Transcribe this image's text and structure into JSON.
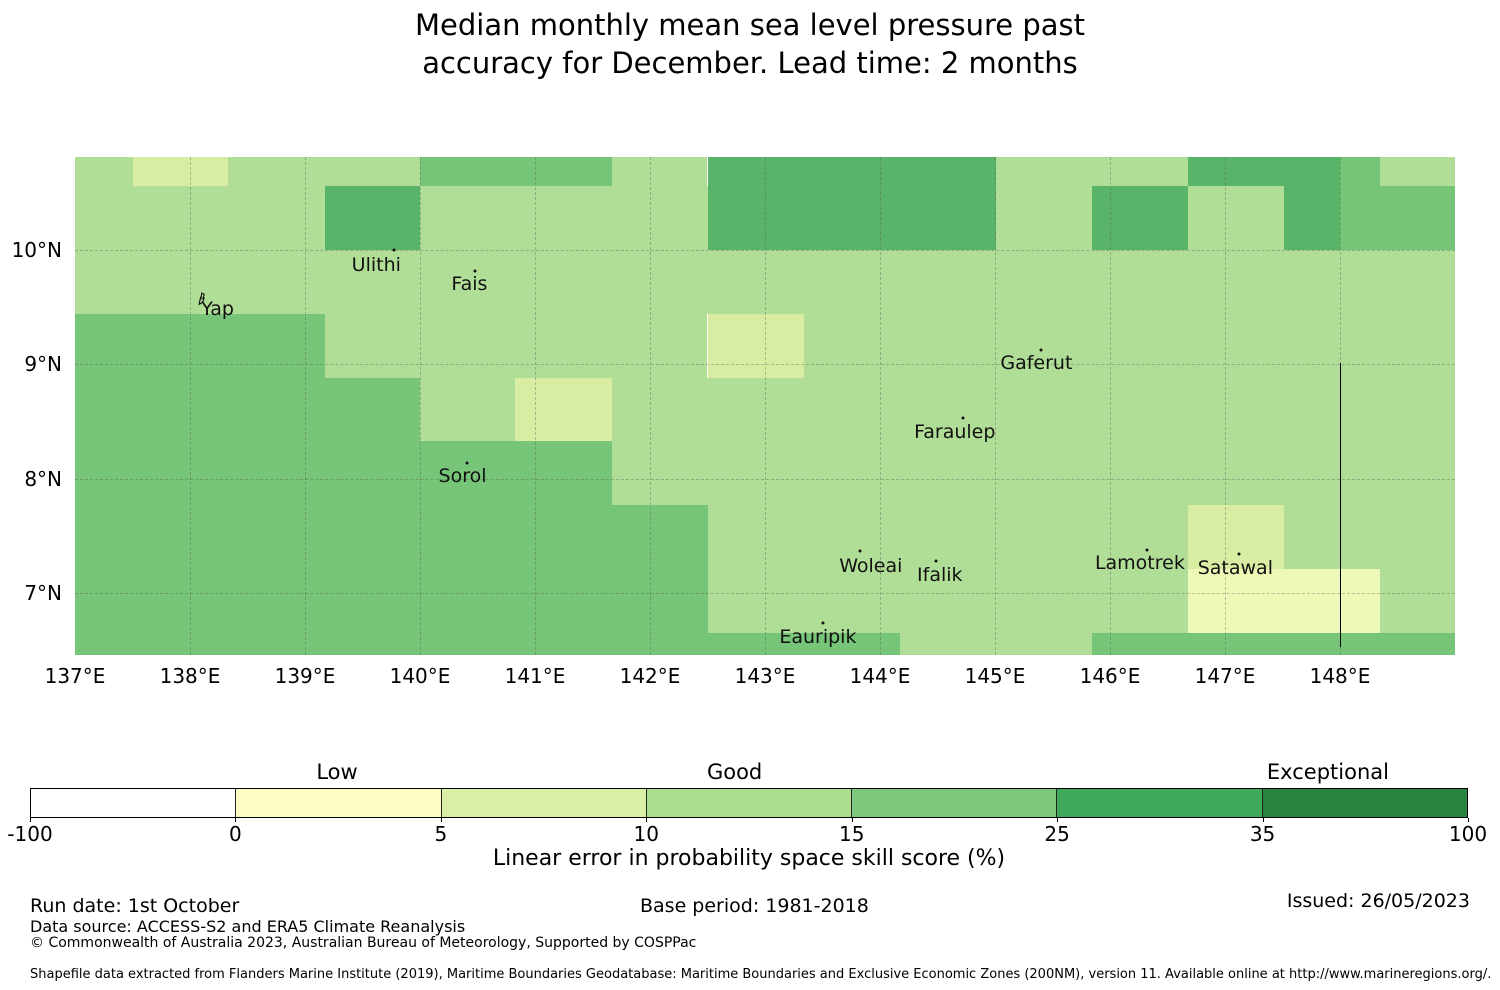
{
  "title": {
    "line1": "Median monthly mean sea level pressure past",
    "line2": "accuracy for December. Lead time: 2 months"
  },
  "chart_data": {
    "type": "heatmap",
    "title": "Median monthly mean sea level pressure past accuracy for December. Lead time: 2 months",
    "map_extent": {
      "lon_min": 137.0,
      "lon_max": 149.0,
      "lat_min": 6.459,
      "lat_max": 10.81
    },
    "x_axis": {
      "ticks": [
        {
          "label": "137°E",
          "lon": 137
        },
        {
          "label": "138°E",
          "lon": 138
        },
        {
          "label": "139°E",
          "lon": 139
        },
        {
          "label": "140°E",
          "lon": 140
        },
        {
          "label": "141°E",
          "lon": 141
        },
        {
          "label": "142°E",
          "lon": 142
        },
        {
          "label": "143°E",
          "lon": 143
        },
        {
          "label": "144°E",
          "lon": 144
        },
        {
          "label": "145°E",
          "lon": 145
        },
        {
          "label": "146°E",
          "lon": 146
        },
        {
          "label": "147°E",
          "lon": 147
        },
        {
          "label": "148°E",
          "lon": 148
        }
      ]
    },
    "y_axis": {
      "ticks": [
        {
          "label": "10°N",
          "lat": 10
        },
        {
          "label": "9°N",
          "lat": 9
        },
        {
          "label": "8°N",
          "lat": 8
        },
        {
          "label": "7°N",
          "lat": 7
        }
      ]
    },
    "lon_gridlines": [
      138,
      139,
      140,
      141,
      142,
      143,
      144,
      145,
      146,
      147,
      148
    ],
    "lat_gridlines": [
      10,
      9,
      8,
      7
    ],
    "bin_colors": {
      "0-5": "#eef8b7",
      "5-10": "#d9eda2",
      "10-15": "#b1de97",
      "15-25": "#76c578",
      "25-35": "#58b469"
    },
    "cells": [
      {
        "lon0": 137.0,
        "lon1": 137.5,
        "lat0": 10.81,
        "lat1": 10.56,
        "skill": "10-15"
      },
      {
        "lon0": 137.5,
        "lon1": 138.33,
        "lat0": 10.81,
        "lat1": 10.56,
        "skill": "5-10"
      },
      {
        "lon0": 138.33,
        "lon1": 140.0,
        "lat0": 10.81,
        "lat1": 10.56,
        "skill": "10-15"
      },
      {
        "lon0": 140.0,
        "lon1": 141.67,
        "lat0": 10.81,
        "lat1": 10.56,
        "skill": "15-25"
      },
      {
        "lon0": 141.67,
        "lon1": 142.5,
        "lat0": 10.81,
        "lat1": 10.56,
        "skill": "10-15"
      },
      {
        "lon0": 142.5,
        "lon1": 145.01,
        "lat0": 10.81,
        "lat1": 10.56,
        "skill": "25-35"
      },
      {
        "lon0": 145.01,
        "lon1": 146.68,
        "lat0": 10.81,
        "lat1": 10.56,
        "skill": "10-15"
      },
      {
        "lon0": 146.68,
        "lon1": 148.0,
        "lat0": 10.81,
        "lat1": 10.56,
        "skill": "25-35"
      },
      {
        "lon0": 148.0,
        "lon1": 148.35,
        "lat0": 10.81,
        "lat1": 10.56,
        "skill": "15-25"
      },
      {
        "lon0": 148.35,
        "lon1": 149.0,
        "lat0": 10.81,
        "lat1": 10.56,
        "skill": "10-15"
      },
      {
        "lon0": 137.0,
        "lon1": 139.17,
        "lat0": 10.56,
        "lat1": 10.0,
        "skill": "10-15"
      },
      {
        "lon0": 139.17,
        "lon1": 140.0,
        "lat0": 10.56,
        "lat1": 10.0,
        "skill": "25-35"
      },
      {
        "lon0": 140.0,
        "lon1": 142.5,
        "lat0": 10.56,
        "lat1": 10.0,
        "skill": "10-15"
      },
      {
        "lon0": 142.5,
        "lon1": 145.01,
        "lat0": 10.56,
        "lat1": 10.0,
        "skill": "25-35"
      },
      {
        "lon0": 145.01,
        "lon1": 145.84,
        "lat0": 10.56,
        "lat1": 10.0,
        "skill": "10-15"
      },
      {
        "lon0": 145.84,
        "lon1": 146.68,
        "lat0": 10.56,
        "lat1": 10.0,
        "skill": "25-35"
      },
      {
        "lon0": 146.68,
        "lon1": 147.51,
        "lat0": 10.56,
        "lat1": 10.0,
        "skill": "10-15"
      },
      {
        "lon0": 147.51,
        "lon1": 148.0,
        "lat0": 10.56,
        "lat1": 10.0,
        "skill": "25-35"
      },
      {
        "lon0": 148.0,
        "lon1": 149.0,
        "lat0": 10.56,
        "lat1": 10.0,
        "skill": "15-25"
      },
      {
        "lon0": 137.0,
        "lon1": 149.0,
        "lat0": 10.0,
        "lat1": 9.44,
        "skill": "10-15"
      },
      {
        "lon0": 137.0,
        "lon1": 139.17,
        "lat0": 9.44,
        "lat1": 8.88,
        "skill": "15-25"
      },
      {
        "lon0": 139.17,
        "lon1": 142.5,
        "lat0": 9.44,
        "lat1": 8.88,
        "skill": "10-15"
      },
      {
        "lon0": 142.5,
        "lon1": 143.34,
        "lat0": 9.44,
        "lat1": 8.88,
        "skill": "5-10"
      },
      {
        "lon0": 143.34,
        "lon1": 149.0,
        "lat0": 9.44,
        "lat1": 8.88,
        "skill": "10-15"
      },
      {
        "lon0": 137.0,
        "lon1": 140.0,
        "lat0": 8.88,
        "lat1": 8.33,
        "skill": "15-25"
      },
      {
        "lon0": 140.0,
        "lon1": 140.83,
        "lat0": 8.88,
        "lat1": 8.33,
        "skill": "10-15"
      },
      {
        "lon0": 140.83,
        "lon1": 141.67,
        "lat0": 8.88,
        "lat1": 8.33,
        "skill": "5-10"
      },
      {
        "lon0": 141.67,
        "lon1": 149.0,
        "lat0": 8.88,
        "lat1": 8.33,
        "skill": "10-15"
      },
      {
        "lon0": 137.0,
        "lon1": 141.67,
        "lat0": 8.33,
        "lat1": 7.77,
        "skill": "15-25"
      },
      {
        "lon0": 141.67,
        "lon1": 149.0,
        "lat0": 8.33,
        "lat1": 7.77,
        "skill": "10-15"
      },
      {
        "lon0": 137.0,
        "lon1": 142.5,
        "lat0": 7.77,
        "lat1": 7.21,
        "skill": "15-25"
      },
      {
        "lon0": 142.5,
        "lon1": 146.68,
        "lat0": 7.77,
        "lat1": 7.21,
        "skill": "10-15"
      },
      {
        "lon0": 146.68,
        "lon1": 147.51,
        "lat0": 7.77,
        "lat1": 7.21,
        "skill": "5-10"
      },
      {
        "lon0": 147.51,
        "lon1": 149.0,
        "lat0": 7.77,
        "lat1": 7.21,
        "skill": "10-15"
      },
      {
        "lon0": 137.0,
        "lon1": 142.5,
        "lat0": 7.21,
        "lat1": 6.65,
        "skill": "15-25"
      },
      {
        "lon0": 142.5,
        "lon1": 146.68,
        "lat0": 7.21,
        "lat1": 6.65,
        "skill": "10-15"
      },
      {
        "lon0": 146.68,
        "lon1": 148.35,
        "lat0": 7.21,
        "lat1": 6.65,
        "skill": "0-5"
      },
      {
        "lon0": 148.35,
        "lon1": 149.0,
        "lat0": 7.21,
        "lat1": 6.65,
        "skill": "10-15"
      },
      {
        "lon0": 137.0,
        "lon1": 144.17,
        "lat0": 6.65,
        "lat1": 6.46,
        "skill": "15-25"
      },
      {
        "lon0": 144.17,
        "lon1": 145.84,
        "lat0": 6.65,
        "lat1": 6.46,
        "skill": "10-15"
      },
      {
        "lon0": 145.84,
        "lon1": 149.0,
        "lat0": 6.65,
        "lat1": 6.46,
        "skill": "15-25"
      }
    ],
    "islands": [
      {
        "name": "Yap",
        "label_lon": 138.24,
        "label_lat": 9.485,
        "marker_lon": 138.11,
        "marker_lat": 9.56,
        "marker": "shape"
      },
      {
        "name": "Ulithi",
        "label_lon": 139.62,
        "label_lat": 9.87,
        "marker_lon": 139.77,
        "marker_lat": 10.0,
        "marker": "dot"
      },
      {
        "name": "Fais",
        "label_lon": 140.43,
        "label_lat": 9.7,
        "marker_lon": 140.48,
        "marker_lat": 9.81,
        "marker": "dot"
      },
      {
        "name": "Sorol",
        "label_lon": 140.37,
        "label_lat": 8.02,
        "marker_lon": 140.41,
        "marker_lat": 8.14,
        "marker": "dot"
      },
      {
        "name": "Gaferut",
        "label_lon": 145.36,
        "label_lat": 9.01,
        "marker_lon": 145.4,
        "marker_lat": 9.12,
        "marker": "dot"
      },
      {
        "name": "Faraulep",
        "label_lon": 144.65,
        "label_lat": 8.41,
        "marker_lon": 144.72,
        "marker_lat": 8.53,
        "marker": "dot"
      },
      {
        "name": "Woleai",
        "label_lon": 143.92,
        "label_lat": 7.24,
        "marker_lon": 143.83,
        "marker_lat": 7.37,
        "marker": "dot"
      },
      {
        "name": "Ifalik",
        "label_lon": 144.52,
        "label_lat": 7.16,
        "marker_lon": 144.49,
        "marker_lat": 7.28,
        "marker": "dot"
      },
      {
        "name": "Lamotrek",
        "label_lon": 146.26,
        "label_lat": 7.26,
        "marker_lon": 146.32,
        "marker_lat": 7.38,
        "marker": "dot"
      },
      {
        "name": "Satawal",
        "label_lon": 147.09,
        "label_lat": 7.22,
        "marker_lon": 147.12,
        "marker_lat": 7.34,
        "marker": "dot"
      },
      {
        "name": "Eauripik",
        "label_lon": 143.46,
        "label_lat": 6.62,
        "marker_lon": 143.5,
        "marker_lat": 6.74,
        "marker": "dot"
      }
    ],
    "boundary_line": {
      "lon": 148.0,
      "lat_top": 9.01,
      "lat_bottom": 6.53
    },
    "colorbar": {
      "headers": [
        {
          "label": "Low",
          "pos": 0.2135
        },
        {
          "label": "Good",
          "pos": 0.49
        },
        {
          "label": "Exceptional",
          "pos": 0.9026
        }
      ],
      "segments": [
        {
          "color": "#ffffff",
          "from": -100,
          "to": 0
        },
        {
          "color": "#fbfdc3",
          "from": 0,
          "to": 5
        },
        {
          "color": "#d9efa3",
          "from": 5,
          "to": 10
        },
        {
          "color": "#addd8e",
          "from": 10,
          "to": 15
        },
        {
          "color": "#7ec87e",
          "from": 15,
          "to": 25
        },
        {
          "color": "#3fa95c",
          "from": 25,
          "to": 35
        },
        {
          "color": "#26843f",
          "from": 35,
          "to": 100
        }
      ],
      "tick_labels": [
        "-100",
        "0",
        "5",
        "10",
        "15",
        "25",
        "35",
        "100"
      ],
      "axis_label": "Linear error in probability space skill score (%)"
    }
  },
  "footer": {
    "run_date": "Run date: 1st October",
    "base_period": "Base period: 1981-2018",
    "issued": "Issued: 26/05/2023",
    "data_source": "Data source: ACCESS-S2 and ERA5 Climate Reanalysis",
    "copyright": "© Commonwealth of Australia 2023, Australian Bureau of Meteorology, Supported by COSPPac",
    "shapefile": "Shapefile data extracted from Flanders Marine Institute (2019), Maritime Boundaries Geodatabase: Maritime Boundaries and Exclusive Economic Zones (200NM), version 11. Available online at http://www.marineregions.org/."
  }
}
